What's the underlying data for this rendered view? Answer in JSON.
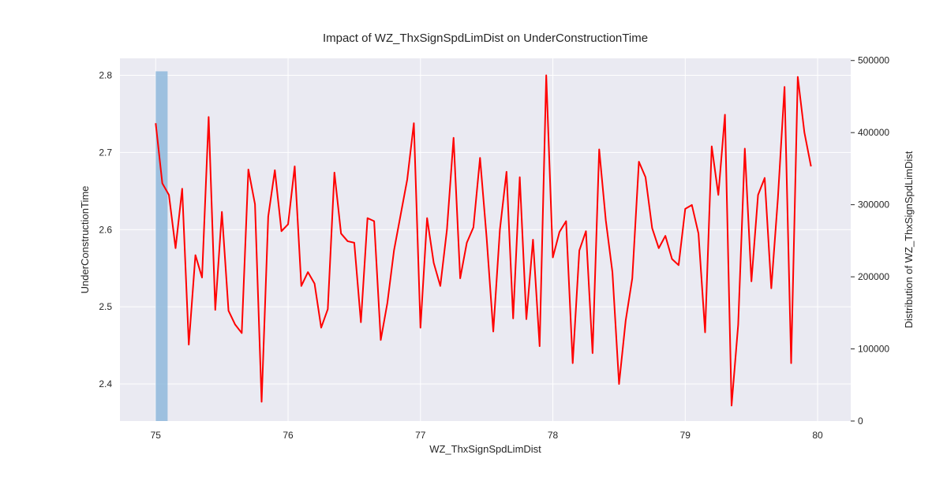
{
  "chart_data": {
    "type": "line",
    "title": "Impact of WZ_ThxSignSpdLimDist on UnderConstructionTime",
    "xlabel": "WZ_ThxSignSpdLimDist",
    "ylabel": "UnderConstructionTime",
    "y2label": "Distribution of WZ_ThxSignSpdLimDist",
    "xlim": [
      74.73,
      80.25
    ],
    "ylim": [
      2.352,
      2.822
    ],
    "y2lim": [
      0,
      503000
    ],
    "xticks": [
      75,
      76,
      77,
      78,
      79,
      80
    ],
    "yticks": [
      2.4,
      2.5,
      2.6,
      2.7,
      2.8
    ],
    "y2ticks": [
      0,
      100000,
      200000,
      300000,
      400000,
      500000
    ],
    "xtick_labels": [
      "75",
      "76",
      "77",
      "78",
      "79",
      "80"
    ],
    "ytick_labels": [
      "2.4",
      "2.5",
      "2.6",
      "2.7",
      "2.8"
    ],
    "y2tick_labels": [
      "0",
      "100000",
      "200000",
      "300000",
      "400000",
      "500000"
    ],
    "grid": true,
    "histogram": {
      "color": "#8fb8dc",
      "bins": [
        {
          "x0": 75.0,
          "x1": 75.09,
          "count": 485000
        }
      ]
    },
    "series": [
      {
        "color": "#ff0000",
        "x": [
          75.0,
          75.05,
          75.1,
          75.15,
          75.2,
          75.25,
          75.3,
          75.35,
          75.4,
          75.45,
          75.5,
          75.55,
          75.6,
          75.65,
          75.7,
          75.75,
          75.8,
          75.85,
          75.9,
          75.95,
          76.0,
          76.05,
          76.1,
          76.15,
          76.2,
          76.25,
          76.3,
          76.35,
          76.4,
          76.45,
          76.5,
          76.55,
          76.6,
          76.65,
          76.7,
          76.75,
          76.8,
          76.85,
          76.9,
          76.95,
          77.0,
          77.05,
          77.1,
          77.15,
          77.2,
          77.25,
          77.3,
          77.35,
          77.4,
          77.45,
          77.5,
          77.55,
          77.6,
          77.65,
          77.7,
          77.75,
          77.8,
          77.85,
          77.9,
          77.95,
          78.0,
          78.05,
          78.1,
          78.15,
          78.2,
          78.25,
          78.3,
          78.35,
          78.4,
          78.45,
          78.5,
          78.55,
          78.6,
          78.65,
          78.7,
          78.75,
          78.8,
          78.85,
          78.9,
          78.95,
          79.0,
          79.05,
          79.1,
          79.15,
          79.2,
          79.25,
          79.3,
          79.35,
          79.4,
          79.45,
          79.5,
          79.55,
          79.6,
          79.65,
          79.7,
          79.75,
          79.8,
          79.85,
          79.9,
          79.95
        ],
        "y": [
          2.738,
          2.66,
          2.645,
          2.576,
          2.653,
          2.451,
          2.567,
          2.538,
          2.746,
          2.496,
          2.623,
          2.495,
          2.477,
          2.466,
          2.678,
          2.633,
          2.377,
          2.617,
          2.677,
          2.598,
          2.607,
          2.682,
          2.527,
          2.545,
          2.53,
          2.473,
          2.497,
          2.674,
          2.595,
          2.585,
          2.583,
          2.48,
          2.615,
          2.611,
          2.457,
          2.505,
          2.573,
          2.619,
          2.665,
          2.738,
          2.473,
          2.615,
          2.557,
          2.527,
          2.6,
          2.719,
          2.537,
          2.583,
          2.603,
          2.693,
          2.589,
          2.468,
          2.6,
          2.675,
          2.485,
          2.668,
          2.484,
          2.587,
          2.449,
          2.8,
          2.564,
          2.597,
          2.611,
          2.427,
          2.573,
          2.598,
          2.44,
          2.704,
          2.612,
          2.545,
          2.4,
          2.482,
          2.537,
          2.688,
          2.668,
          2.602,
          2.576,
          2.592,
          2.562,
          2.554,
          2.627,
          2.632,
          2.595,
          2.467,
          2.708,
          2.645,
          2.749,
          2.372,
          2.477,
          2.705,
          2.533,
          2.645,
          2.667,
          2.524,
          2.641,
          2.785,
          2.427,
          2.798,
          2.726,
          2.682
        ]
      }
    ]
  }
}
